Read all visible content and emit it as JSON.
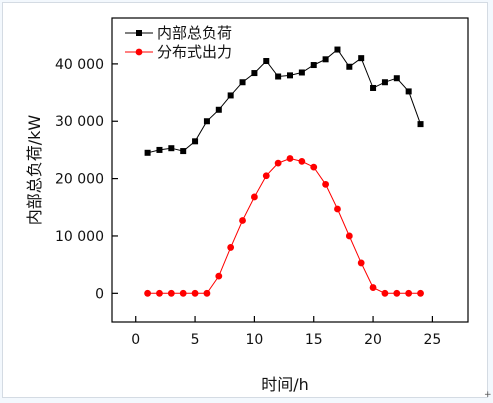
{
  "chart_data": {
    "type": "line",
    "title": "",
    "xlabel": "时间/h",
    "ylabel": "内部总负荷/kW",
    "xlim": [
      -2,
      28
    ],
    "ylim": [
      -5000,
      48000
    ],
    "xticks": [
      0,
      5,
      10,
      15,
      20,
      25
    ],
    "xtick_labels": [
      "0",
      "5",
      "10",
      "15",
      "20",
      "25"
    ],
    "yticks": [
      0,
      10000,
      20000,
      30000,
      40000
    ],
    "ytick_labels": [
      "0",
      "10 000",
      "20 000",
      "30 000",
      "40 000"
    ],
    "grid": false,
    "legend_position": "top-left",
    "x": [
      1,
      2,
      3,
      4,
      5,
      6,
      7,
      8,
      9,
      10,
      11,
      12,
      13,
      14,
      15,
      16,
      17,
      18,
      19,
      20,
      21,
      22,
      23,
      24
    ],
    "series": [
      {
        "name": "内部总负荷",
        "color": "#000000",
        "marker": "square",
        "values": [
          24500,
          25000,
          25300,
          24800,
          26500,
          30000,
          32000,
          34500,
          36800,
          38400,
          40500,
          37800,
          38000,
          38500,
          39800,
          40800,
          42500,
          39500,
          41000,
          35800,
          36800,
          37500,
          35200,
          29500
        ]
      },
      {
        "name": "分布式出力",
        "color": "#ff0000",
        "marker": "circle",
        "values": [
          0,
          0,
          0,
          0,
          0,
          0,
          3000,
          8000,
          12700,
          16800,
          20500,
          22700,
          23500,
          23000,
          22000,
          19000,
          14700,
          10000,
          5300,
          1000,
          0,
          0,
          0,
          0
        ]
      }
    ]
  },
  "corner_mark": "+"
}
